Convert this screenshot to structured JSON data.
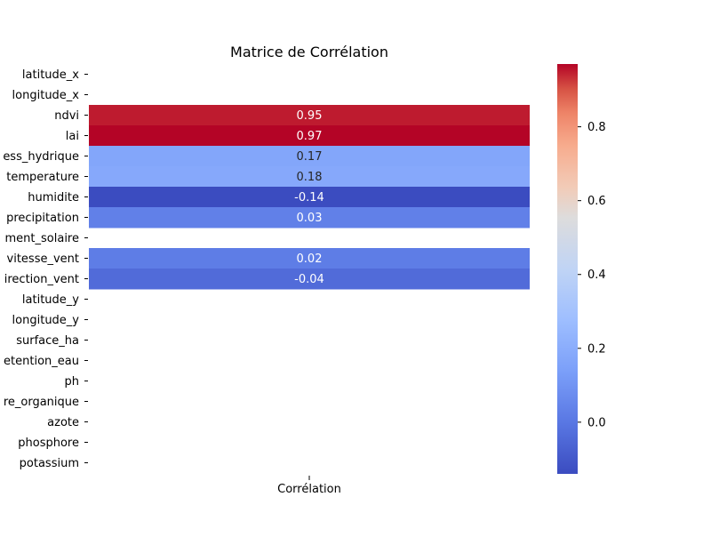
{
  "chart_data": {
    "type": "heatmap",
    "title": "Matrice de Corrélation",
    "xlabel": "",
    "ylabel": "",
    "x_categories": [
      "Corrélation"
    ],
    "row_tick_labels": [
      "latitude_x",
      "longitude_x",
      "ndvi",
      "lai",
      "ess_hydrique",
      "temperature",
      "humidite",
      "precipitation",
      "ment_solaire",
      "vitesse_vent",
      "irection_vent",
      "latitude_y",
      "longitude_y",
      "surface_ha",
      "etention_eau",
      "ph",
      "re_organique",
      "azote",
      "phosphore",
      "potassium"
    ],
    "values": [
      null,
      null,
      0.95,
      0.97,
      0.17,
      0.18,
      -0.14,
      0.03,
      null,
      0.02,
      -0.04,
      null,
      null,
      null,
      null,
      null,
      null,
      null,
      null,
      null
    ],
    "value_labels": [
      "",
      "",
      "0.95",
      "0.97",
      "0.17",
      "0.18",
      "-0.14",
      "0.03",
      "",
      "0.02",
      "-0.04",
      "",
      "",
      "",
      "",
      "",
      "",
      "",
      "",
      ""
    ],
    "colormap": "coolwarm",
    "vmin": -0.14,
    "vmax": 0.97,
    "colorbar": {
      "ticks": [
        0.0,
        0.2,
        0.4,
        0.6,
        0.8
      ],
      "tick_labels": [
        "0.0",
        "0.2",
        "0.4",
        "0.6",
        "0.8"
      ]
    },
    "grid": false,
    "legend": "colorbar-right"
  }
}
